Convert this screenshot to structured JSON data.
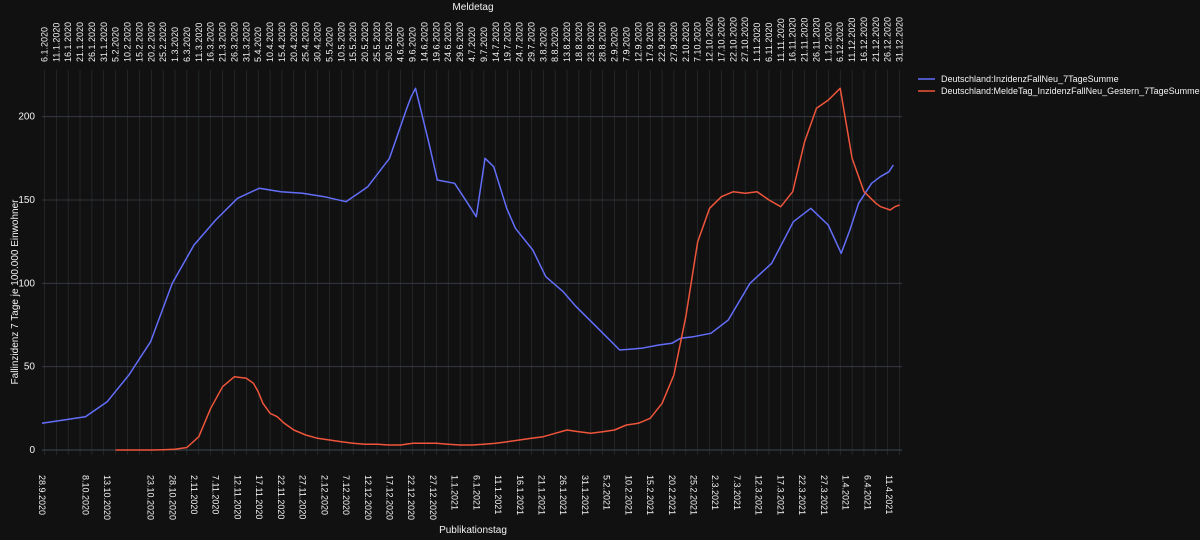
{
  "chart_data": {
    "type": "line",
    "xlabel_bottom": "Publikationstag",
    "xlabel_top": "Meldetag",
    "ylabel": "Fallinzidenz 7 Tage je 100.000 Einwohner",
    "ylim": [
      -3,
      228
    ],
    "y_ticks": [
      0,
      50,
      100,
      150,
      200
    ],
    "grid": true,
    "legend_position": "top-right",
    "colors": {
      "background": "#111111",
      "grid": "#2e3338",
      "series_blue": "#636efa",
      "series_red": "#ef553b"
    },
    "bottom_ticks": [
      "28.9.2020",
      "8.10.2020",
      "13.10.2020",
      "23.10.2020",
      "28.10.2020",
      "2.11.2020",
      "7.11.2020",
      "12.11.2020",
      "17.11.2020",
      "22.11.2020",
      "27.11.2020",
      "2.12.2020",
      "7.12.2020",
      "12.12.2020",
      "17.12.2020",
      "22.12.2020",
      "27.12.2020",
      "1.1.2021",
      "6.1.2021",
      "11.1.2021",
      "16.1.2021",
      "21.1.2021",
      "26.1.2021",
      "31.1.2021",
      "5.2.2021",
      "10.2.2021",
      "15.2.2021",
      "20.2.2021",
      "25.2.2021",
      "2.3.2021",
      "7.3.2021",
      "12.3.2021",
      "17.3.2021",
      "22.3.2021",
      "27.3.2021",
      "1.4.2021",
      "6.4.2021",
      "11.4.2021"
    ],
    "top_ticks": [
      "6.1.2020",
      "11.1.2020",
      "16.1.2020",
      "21.1.2020",
      "26.1.2020",
      "31.1.2020",
      "5.2.2020",
      "10.2.2020",
      "15.2.2020",
      "20.2.2020",
      "25.2.2020",
      "1.3.2020",
      "6.3.2020",
      "11.3.2020",
      "16.3.2020",
      "21.3.2020",
      "26.3.2020",
      "31.3.2020",
      "5.4.2020",
      "10.4.2020",
      "15.4.2020",
      "20.4.2020",
      "25.4.2020",
      "30.4.2020",
      "5.5.2020",
      "10.5.2020",
      "15.5.2020",
      "20.5.2020",
      "25.5.2020",
      "30.5.2020",
      "4.6.2020",
      "9.6.2020",
      "14.6.2020",
      "19.6.2020",
      "24.6.2020",
      "29.6.2020",
      "4.7.2020",
      "9.7.2020",
      "14.7.2020",
      "19.7.2020",
      "24.7.2020",
      "29.7.2020",
      "3.8.2020",
      "8.8.2020",
      "13.8.2020",
      "18.8.2020",
      "23.8.2020",
      "28.8.2020",
      "2.9.2020",
      "7.9.2020",
      "12.9.2020",
      "17.9.2020",
      "22.9.2020",
      "27.9.2020",
      "2.10.2020",
      "7.10.2020",
      "12.10.2020",
      "17.10.2020",
      "22.10.2020",
      "27.10.2020",
      "1.11.2020",
      "6.11.2020",
      "11.11.2020",
      "16.11.2020",
      "21.11.2020",
      "26.11.2020",
      "1.12.2020",
      "6.12.2020",
      "11.12.2020",
      "16.12.2020",
      "21.12.2020",
      "26.12.2020",
      "31.12.2020"
    ],
    "series": [
      {
        "name": "Deutschland:InzidenzFallNeu_7TageSumme",
        "x_axis": "Publikationstag",
        "x": [
          "28.9.2020",
          "8.10.2020",
          "13.10.2020",
          "18.10.2020",
          "23.10.2020",
          "28.10.2020",
          "2.11.2020",
          "7.11.2020",
          "12.11.2020",
          "17.11.2020",
          "22.11.2020",
          "27.11.2020",
          "2.12.2020",
          "7.12.2020",
          "12.12.2020",
          "17.12.2020",
          "21.12.2020",
          "22.12.2020",
          "23.12.2020",
          "26.12.2020",
          "28.12.2020",
          "1.1.2021",
          "4.1.2021",
          "6.1.2021",
          "8.1.2021",
          "10.1.2021",
          "13.1.2021",
          "15.1.2021",
          "19.1.2021",
          "22.1.2021",
          "26.1.2021",
          "29.1.2021",
          "3.2.2021",
          "8.2.2021",
          "13.2.2021",
          "17.2.2021",
          "20.2.2021",
          "22.2.2021",
          "25.2.2021",
          "1.3.2021",
          "5.3.2021",
          "10.3.2021",
          "15.3.2021",
          "20.3.2021",
          "24.3.2021",
          "28.3.2021",
          "31.3.2021",
          "2.4.2021",
          "4.4.2021",
          "7.4.2021",
          "9.4.2021",
          "11.4.2021",
          "12.4.2021"
        ],
        "y": [
          16,
          20,
          29,
          45,
          65,
          100,
          123,
          138,
          151,
          157,
          155,
          154,
          152,
          149,
          158,
          175,
          205,
          212,
          217,
          185,
          162,
          160,
          148,
          140,
          175,
          170,
          145,
          133,
          120,
          104,
          95,
          86,
          73,
          60,
          61,
          63,
          64,
          67,
          68,
          70,
          78,
          100,
          112,
          137,
          145,
          135,
          118,
          132,
          148,
          160,
          164,
          167,
          171
        ]
      },
      {
        "name": "Deutschland:MeldeTag_InzidenzFallNeu_Gestern_7TageSumme",
        "x_axis": "Meldetag",
        "x": [
          "5.2.2020",
          "10.2.2020",
          "15.2.2020",
          "20.2.2020",
          "25.2.2020",
          "1.3.2020",
          "6.3.2020",
          "11.3.2020",
          "16.3.2020",
          "21.3.2020",
          "26.3.2020",
          "31.3.2020",
          "3.4.2020",
          "5.4.2020",
          "7.4.2020",
          "10.4.2020",
          "13.4.2020",
          "16.4.2020",
          "20.4.2020",
          "25.4.2020",
          "30.4.2020",
          "5.5.2020",
          "10.5.2020",
          "15.5.2020",
          "20.5.2020",
          "25.5.2020",
          "30.5.2020",
          "4.6.2020",
          "9.6.2020",
          "14.6.2020",
          "19.6.2020",
          "24.6.2020",
          "29.6.2020",
          "4.7.2020",
          "9.7.2020",
          "14.7.2020",
          "19.7.2020",
          "24.7.2020",
          "29.7.2020",
          "3.8.2020",
          "8.8.2020",
          "13.8.2020",
          "18.8.2020",
          "23.8.2020",
          "28.8.2020",
          "2.9.2020",
          "7.9.2020",
          "12.9.2020",
          "17.9.2020",
          "22.9.2020",
          "27.9.2020",
          "2.10.2020",
          "7.10.2020",
          "12.10.2020",
          "17.10.2020",
          "22.10.2020",
          "27.10.2020",
          "1.11.2020",
          "6.11.2020",
          "11.11.2020",
          "16.11.2020",
          "21.11.2020",
          "26.11.2020",
          "1.12.2020",
          "6.12.2020",
          "11.12.2020",
          "16.12.2020",
          "21.12.2020",
          "23.12.2020",
          "25.12.2020",
          "27.12.2020",
          "29.12.2020",
          "31.12.2020"
        ],
        "y": [
          0,
          0,
          0,
          0,
          0.2,
          0.5,
          1.5,
          8,
          25,
          38,
          44,
          43,
          40,
          35,
          28,
          22,
          20,
          16,
          12,
          9,
          7,
          6,
          5,
          4,
          3.5,
          3.5,
          3,
          3,
          4,
          4,
          4,
          3.5,
          3,
          3,
          3.5,
          4,
          5,
          6,
          7,
          8,
          10,
          12,
          11,
          10,
          11,
          12,
          15,
          16,
          19,
          28,
          45,
          80,
          125,
          145,
          152,
          155,
          154,
          155,
          150,
          146,
          155,
          185,
          205,
          210,
          217,
          175,
          155,
          148,
          146,
          145,
          144,
          146,
          147
        ]
      }
    ]
  }
}
